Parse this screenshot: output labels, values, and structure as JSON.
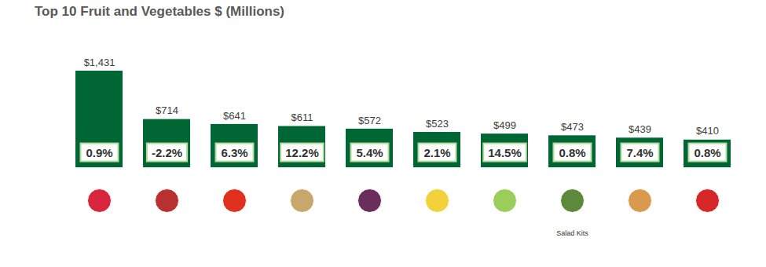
{
  "chart_data": {
    "type": "bar",
    "title": "Top 10 Fruit and Vegetables $ (Millions)",
    "categories": [
      null,
      null,
      null,
      null,
      null,
      null,
      null,
      "Salad Kits",
      null,
      null
    ],
    "values": [
      1431,
      714,
      641,
      611,
      572,
      523,
      499,
      473,
      439,
      410
    ],
    "value_labels": [
      "$1,431",
      "$714",
      "$641",
      "$611",
      "$572",
      "$523",
      "$499",
      "$473",
      "$439",
      "$410"
    ],
    "growth_labels": [
      "0.9%",
      "-2.2%",
      "6.3%",
      "12.2%",
      "5.4%",
      "2.1%",
      "14.5%",
      "0.8%",
      "7.4%",
      "0.8%"
    ],
    "color": "#006633",
    "ylim": [
      0,
      1431
    ],
    "yticks": [],
    "tick_labels": "x",
    "data_labels": true
  }
}
